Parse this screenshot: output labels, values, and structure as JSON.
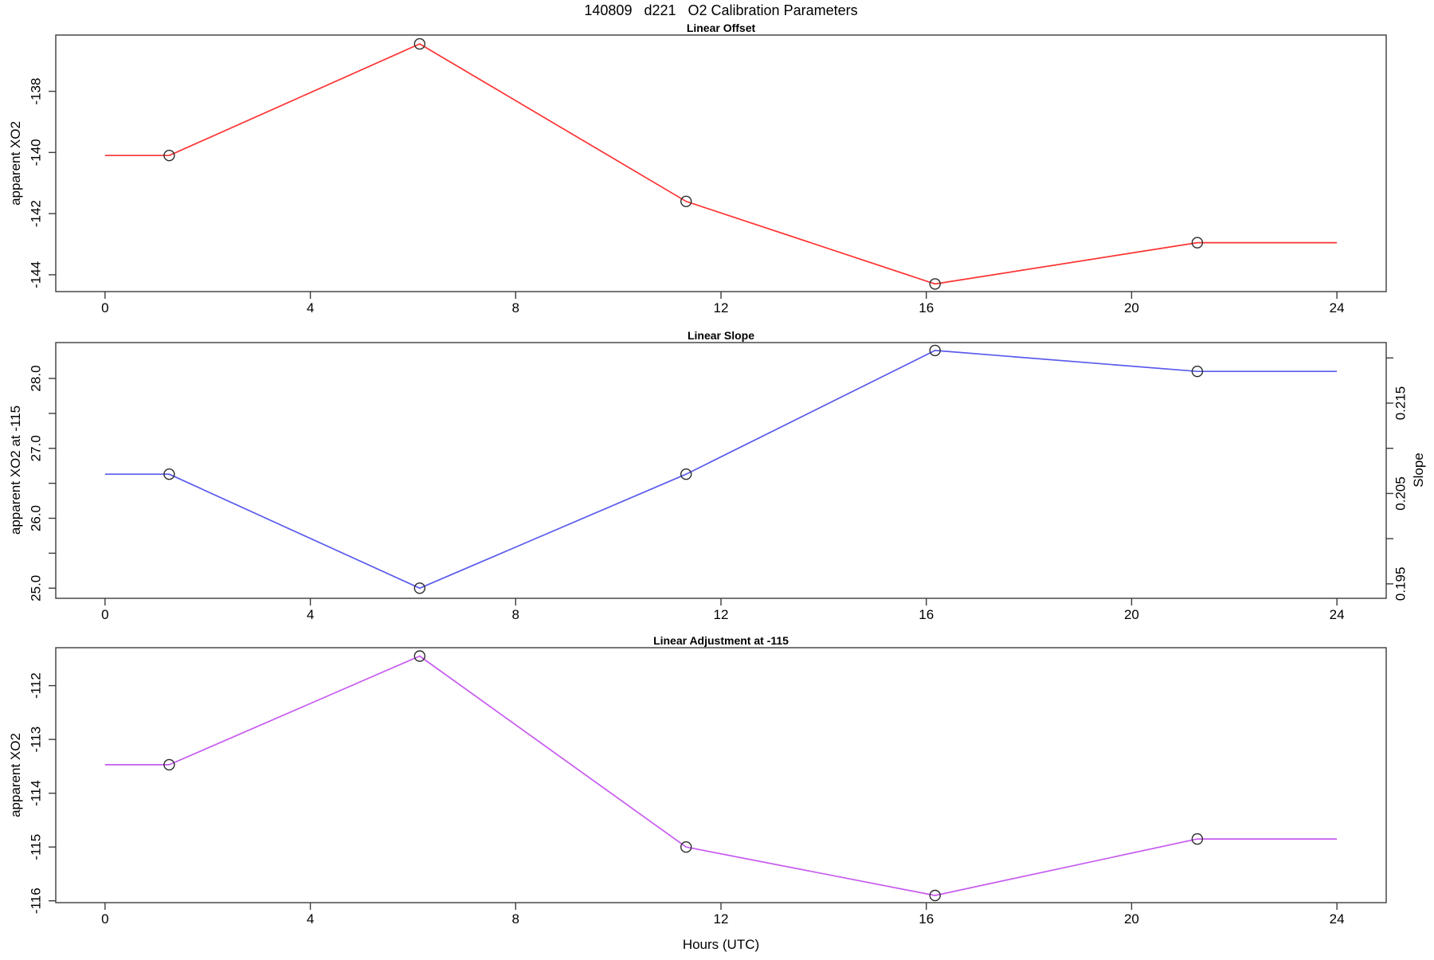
{
  "title": "140809   d221   O2 Calibration Parameters",
  "xlabel": "Hours (UTC)",
  "colors": {
    "offset_line": "#ff3333",
    "slope_line": "#5a5aee",
    "adjustment_line": "#c75bf0",
    "frame": "#3c3c3c",
    "marker_stroke": "#2b2b2b",
    "text": "#000000"
  },
  "chart_data": [
    {
      "type": "line",
      "title": "Linear Offset",
      "ylabel": "apparent XO2",
      "color": "#ff3333",
      "x": [
        1.25,
        6.13,
        11.32,
        16.17,
        21.28
      ],
      "values": [
        -140.1,
        -136.45,
        -141.6,
        -144.3,
        -142.95
      ],
      "extend_flat_to": [
        0,
        24
      ],
      "xlim": [
        -0.96,
        24.96
      ],
      "ylim": [
        -144.55,
        -136.16
      ],
      "xticks": [
        0,
        4,
        8,
        12,
        16,
        20,
        24
      ],
      "yticks": [
        {
          "v": -144,
          "label": "-144"
        },
        {
          "v": -142,
          "label": "-142"
        },
        {
          "v": -140,
          "label": "-140"
        },
        {
          "v": -138,
          "label": "-138"
        }
      ],
      "legend": "none",
      "grid": false,
      "marker": "open-circle"
    },
    {
      "type": "line",
      "title": "Linear Slope",
      "ylabel": "apparent XO2 at -115",
      "y2label": "Slope",
      "color": "#5a5aee",
      "x": [
        1.25,
        6.13,
        11.32,
        16.17,
        21.28
      ],
      "values": [
        26.63,
        25.0,
        26.63,
        28.4,
        28.1
      ],
      "extend_flat_to": [
        0,
        24
      ],
      "xlim": [
        -0.96,
        24.96
      ],
      "ylim": [
        24.855,
        28.513
      ],
      "y2lim": [
        0.1934,
        0.2217
      ],
      "xticks": [
        0,
        4,
        8,
        12,
        16,
        20,
        24
      ],
      "yticks": [
        {
          "v": 25.0,
          "label": "25.0"
        },
        {
          "v": 25.5,
          "label": ""
        },
        {
          "v": 26.0,
          "label": "26.0"
        },
        {
          "v": 26.5,
          "label": ""
        },
        {
          "v": 27.0,
          "label": "27.0"
        },
        {
          "v": 27.5,
          "label": ""
        },
        {
          "v": 28.0,
          "label": "28.0"
        }
      ],
      "y2ticks": [
        {
          "v": 0.195,
          "label": "0.195"
        },
        {
          "v": 0.2,
          "label": ""
        },
        {
          "v": 0.205,
          "label": "0.205"
        },
        {
          "v": 0.21,
          "label": ""
        },
        {
          "v": 0.215,
          "label": "0.215"
        },
        {
          "v": 0.22,
          "label": ""
        }
      ],
      "legend": "none",
      "grid": false,
      "marker": "open-circle"
    },
    {
      "type": "line",
      "title": "Linear Adjustment at -115",
      "ylabel": "apparent XO2",
      "color": "#c75bf0",
      "x": [
        1.25,
        6.13,
        11.32,
        16.17,
        21.28
      ],
      "values": [
        -113.47,
        -111.45,
        -115.0,
        -115.9,
        -114.85
      ],
      "extend_flat_to": [
        0,
        24
      ],
      "xlim": [
        -0.96,
        24.96
      ],
      "ylim": [
        -116.034,
        -111.295
      ],
      "xticks": [
        0,
        4,
        8,
        12,
        16,
        20,
        24
      ],
      "yticks": [
        {
          "v": -116,
          "label": "-116"
        },
        {
          "v": -115,
          "label": "-115"
        },
        {
          "v": -114,
          "label": "-114"
        },
        {
          "v": -113,
          "label": "-113"
        },
        {
          "v": -112,
          "label": "-112"
        }
      ],
      "legend": "none",
      "grid": false,
      "marker": "open-circle"
    }
  ]
}
